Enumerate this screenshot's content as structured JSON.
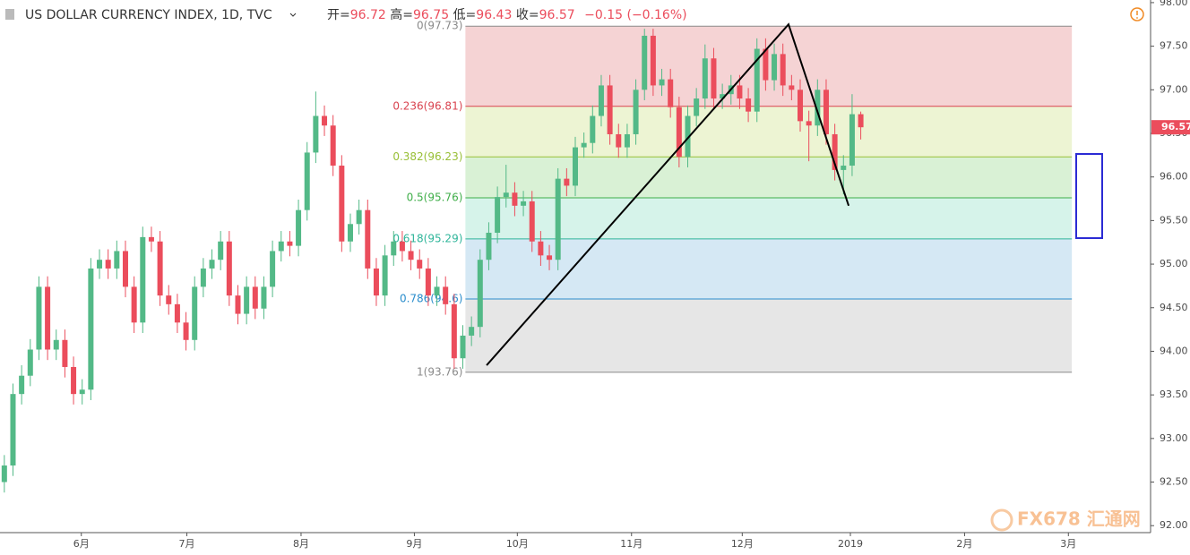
{
  "chart_data": {
    "type": "candlestick",
    "title": "US DOLLAR CURRENCY INDEX, 1D, TVC",
    "ohlc_labels": [
      "开=",
      "高=",
      "低=",
      "收="
    ],
    "change_label": "−0.15 (−0.16%)",
    "up_color": "#53b987",
    "down_color": "#eb4d5c",
    "xlim": [
      -0.5,
      132.5
    ],
    "xticks": [
      {
        "value": 8.9,
        "label": "6月"
      },
      {
        "value": 21.1,
        "label": "7月"
      },
      {
        "value": 34.3,
        "label": "8月"
      },
      {
        "value": 47.4,
        "label": "9月"
      },
      {
        "value": 59.3,
        "label": "10月"
      },
      {
        "value": 72.5,
        "label": "11月"
      },
      {
        "value": 85.3,
        "label": "12月"
      },
      {
        "value": 97.8,
        "label": "2019"
      },
      {
        "value": 111.0,
        "label": "2月"
      },
      {
        "value": 123.0,
        "label": "3月"
      }
    ],
    "ylim": [
      91.92,
      98.03
    ],
    "yticks": [
      {
        "value": 92,
        "label": "92.00"
      },
      {
        "value": 92.5,
        "label": "92.50"
      },
      {
        "value": 93,
        "label": "93.00"
      },
      {
        "value": 93.5,
        "label": "93.50"
      },
      {
        "value": 94,
        "label": "94.00"
      },
      {
        "value": 94.5,
        "label": "94.50"
      },
      {
        "value": 95,
        "label": "95.00"
      },
      {
        "value": 95.5,
        "label": "95.50"
      },
      {
        "value": 96,
        "label": "96.00"
      },
      {
        "value": 96.5,
        "label": "96.50"
      },
      {
        "value": 97,
        "label": "97.00"
      },
      {
        "value": 97.5,
        "label": "97.50"
      },
      {
        "value": 98,
        "label": "98.00"
      }
    ],
    "open": [
      92.5,
      92.69,
      93.51,
      93.72,
      94.02,
      94.74,
      94.02,
      94.13,
      93.82,
      93.51,
      93.56,
      94.95,
      95.05,
      94.95,
      95.15,
      94.74,
      94.33,
      95.31,
      95.26,
      94.64,
      94.54,
      94.33,
      94.13,
      94.74,
      94.95,
      95.05,
      95.26,
      94.64,
      94.43,
      94.74,
      94.49,
      94.74,
      95.15,
      95.26,
      95.21,
      95.62,
      96.28,
      96.7,
      96.59,
      96.13,
      95.26,
      95.46,
      95.62,
      94.95,
      94.64,
      95.1,
      95.26,
      95.15,
      95.05,
      94.95,
      94.64,
      94.74,
      94.54,
      93.92,
      94.18,
      94.28,
      95.05,
      95.36,
      95.77,
      95.82,
      95.67,
      95.72,
      95.26,
      95.1,
      95.05,
      95.98,
      95.9,
      96.34,
      96.39,
      96.7,
      97.05,
      96.49,
      96.34,
      96.49,
      97.0,
      97.62,
      97.05,
      97.12,
      96.8,
      96.23,
      96.7,
      96.9,
      97.36,
      96.9,
      96.95,
      97.05,
      96.9,
      96.75,
      97.47,
      97.11,
      97.41,
      97.05,
      97.0,
      96.64,
      96.59,
      97.0,
      96.49,
      96.08,
      96.13,
      96.72
    ],
    "high": [
      92.81,
      93.63,
      93.84,
      94.14,
      94.86,
      94.86,
      94.25,
      94.25,
      93.94,
      93.68,
      95.07,
      95.17,
      95.17,
      95.27,
      95.27,
      94.86,
      95.43,
      95.43,
      95.38,
      94.76,
      94.66,
      94.45,
      94.86,
      95.07,
      95.17,
      95.38,
      95.38,
      94.76,
      94.86,
      94.86,
      94.86,
      95.27,
      95.38,
      95.38,
      95.74,
      96.4,
      96.98,
      96.82,
      96.71,
      96.25,
      95.58,
      95.74,
      95.74,
      95.07,
      95.22,
      95.38,
      95.38,
      95.27,
      95.17,
      95.07,
      94.86,
      94.86,
      94.66,
      94.3,
      94.4,
      95.17,
      95.48,
      95.89,
      96.14,
      95.94,
      95.84,
      95.84,
      95.38,
      95.22,
      96.1,
      96.1,
      96.46,
      96.51,
      96.82,
      97.17,
      97.17,
      96.61,
      96.61,
      97.12,
      97.7,
      97.7,
      97.24,
      97.24,
      96.92,
      96.82,
      97.02,
      97.52,
      97.48,
      97.07,
      97.17,
      97.17,
      97.02,
      97.59,
      97.59,
      97.53,
      97.53,
      97.17,
      97.12,
      96.76,
      97.12,
      97.12,
      96.61,
      96.25,
      96.95,
      96.75
    ],
    "low": [
      92.38,
      92.57,
      93.39,
      93.6,
      93.9,
      93.9,
      93.9,
      93.7,
      93.39,
      93.39,
      93.44,
      94.83,
      94.83,
      94.83,
      94.62,
      94.21,
      94.21,
      95.14,
      94.52,
      94.42,
      94.21,
      94.01,
      94.01,
      94.62,
      94.83,
      94.93,
      94.52,
      94.31,
      94.31,
      94.37,
      94.37,
      94.62,
      95.03,
      95.09,
      95.09,
      95.5,
      96.16,
      96.47,
      96.01,
      95.14,
      95.14,
      95.34,
      94.83,
      94.52,
      94.52,
      94.98,
      95.03,
      94.93,
      94.83,
      94.52,
      94.52,
      94.42,
      93.8,
      93.8,
      94.06,
      94.16,
      94.93,
      95.24,
      95.65,
      95.55,
      95.55,
      95.14,
      94.98,
      94.93,
      94.93,
      95.78,
      95.78,
      96.22,
      96.27,
      96.58,
      96.37,
      96.22,
      96.22,
      96.37,
      96.88,
      96.93,
      96.93,
      96.68,
      96.11,
      96.11,
      96.58,
      96.78,
      96.78,
      96.78,
      96.83,
      96.78,
      96.63,
      96.63,
      96.99,
      96.99,
      96.93,
      96.88,
      96.52,
      96.18,
      96.47,
      96.37,
      95.96,
      95.8,
      96.01,
      96.43
    ],
    "close": [
      92.69,
      93.51,
      93.72,
      94.02,
      94.74,
      94.02,
      94.13,
      93.82,
      93.51,
      93.56,
      94.95,
      95.05,
      94.95,
      95.15,
      94.74,
      94.33,
      95.31,
      95.26,
      94.64,
      94.54,
      94.33,
      94.13,
      94.74,
      94.95,
      95.05,
      95.26,
      94.64,
      94.43,
      94.74,
      94.49,
      94.74,
      95.15,
      95.26,
      95.21,
      95.62,
      96.28,
      96.7,
      96.59,
      96.13,
      95.26,
      95.46,
      95.62,
      94.95,
      94.64,
      95.1,
      95.26,
      95.15,
      95.05,
      94.95,
      94.64,
      94.74,
      94.54,
      93.92,
      94.18,
      94.28,
      95.05,
      95.36,
      95.77,
      95.82,
      95.67,
      95.72,
      95.26,
      95.1,
      95.05,
      95.98,
      95.9,
      96.34,
      96.39,
      96.7,
      97.05,
      96.49,
      96.34,
      96.49,
      97.0,
      97.62,
      97.05,
      97.12,
      96.8,
      96.23,
      96.7,
      96.9,
      97.36,
      96.9,
      96.95,
      97.05,
      96.9,
      96.75,
      97.47,
      97.11,
      97.41,
      97.05,
      97.0,
      96.64,
      96.59,
      97.0,
      96.49,
      96.08,
      96.13,
      96.72,
      96.57
    ],
    "fib": {
      "x_range": [
        53.3,
        123.4
      ],
      "levels": [
        {
          "label": "0(97.73)",
          "value": 97.73,
          "color": "#8a8a8a"
        },
        {
          "label": "0.236(96.81)",
          "value": 96.81,
          "color": "#d9434f"
        },
        {
          "label": "0.382(96.23)",
          "value": 96.23,
          "color": "#98bf36"
        },
        {
          "label": "0.5(95.76)",
          "value": 95.76,
          "color": "#3fae49"
        },
        {
          "label": "0.618(95.29)",
          "value": 95.29,
          "color": "#2fb59a"
        },
        {
          "label": "0.786(94.6)",
          "value": 94.6,
          "color": "#2a8dcc"
        },
        {
          "label": "1(93.76)",
          "value": 93.76,
          "color": "#8a8a8a"
        }
      ],
      "band_colors": [
        "#f5d3d4",
        "#edf4d3",
        "#d9f1d5",
        "#d6f3ea",
        "#d5e8f4",
        "#e6e6e6"
      ]
    },
    "trend_line": {
      "x": [
        55.75,
        90.65,
        97.6
      ],
      "y": [
        93.84,
        97.75,
        95.67
      ],
      "color": "#000000"
    },
    "watermark": "FX678 汇通网"
  }
}
